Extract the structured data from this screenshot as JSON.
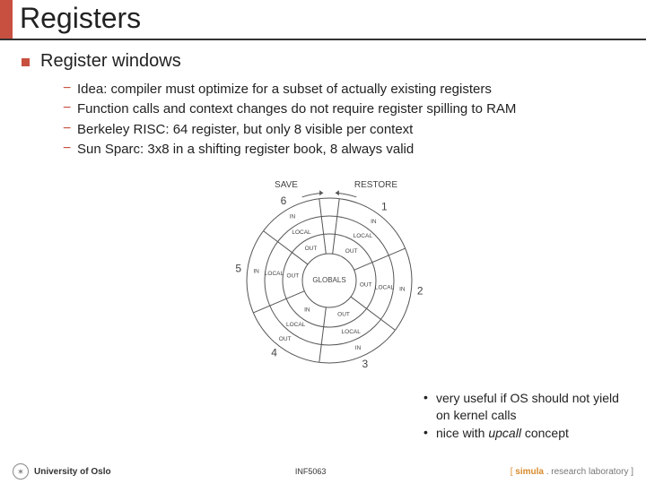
{
  "title": "Registers",
  "section": {
    "heading": "Register windows",
    "items": [
      "Idea: compiler must optimize for a subset of actually existing registers",
      "Function calls and context changes do not require register spilling to RAM",
      "Berkeley RISC: 64 register, but only 8 visible per context",
      "Sun Sparc: 3x8 in a shifting register book, 8 always valid"
    ]
  },
  "diagram": {
    "outer_labels": {
      "save": "SAVE",
      "restore": "RESTORE"
    },
    "center": "GLOBALS",
    "wedges": [
      {
        "num": "1",
        "labels": [
          "IN",
          "LOCAL",
          "OUT"
        ]
      },
      {
        "num": "2",
        "labels": [
          "IN",
          "LOCAL",
          "OUT"
        ]
      },
      {
        "num": "3",
        "labels": [
          "IN",
          "LOCAL",
          "OUT"
        ]
      },
      {
        "num": "4",
        "labels": [
          "OUT",
          "LOCAL",
          "IN"
        ]
      },
      {
        "num": "5",
        "labels": [
          "IN",
          "LOCAL",
          "OUT"
        ]
      },
      {
        "num": "6",
        "labels": [
          "IN",
          "LOCAL",
          "OUT"
        ]
      }
    ],
    "colors": {
      "stroke": "#555555",
      "text": "#444444",
      "bg": "#ffffff"
    },
    "radii": {
      "outer": 92,
      "mid2": 72,
      "mid1": 52,
      "inner": 30
    }
  },
  "notes": [
    {
      "pre": "very useful if OS should not yield on kernel calls",
      "ital": ""
    },
    {
      "pre": "nice with ",
      "ital": "upcall",
      "post": " concept"
    }
  ],
  "footer": {
    "left": "University of Oslo",
    "center": "INF5063",
    "right": {
      "open": "[ ",
      "brand": "simula",
      "rest": " . research laboratory ]"
    }
  }
}
